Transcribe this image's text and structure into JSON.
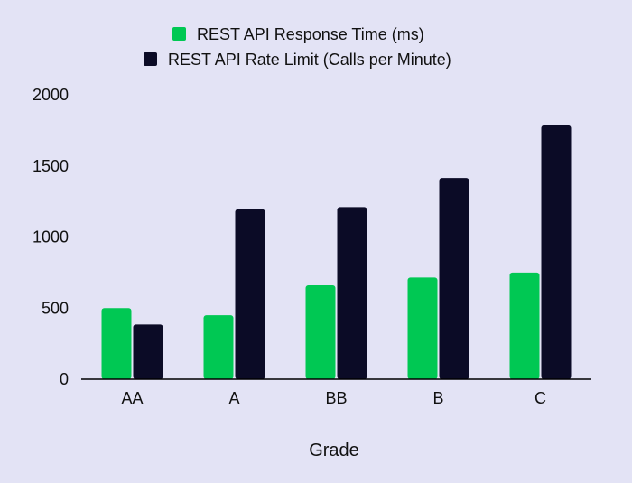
{
  "colors": {
    "background": "#e3e3f5",
    "series_1": "#00c853",
    "series_2": "#0b0b26",
    "axis": "#000000"
  },
  "chart_data": {
    "type": "bar",
    "categories": [
      "AA",
      "A",
      "BB",
      "B",
      "C"
    ],
    "series": [
      {
        "name": "REST API Response Time (ms)",
        "values": [
          500,
          450,
          660,
          715,
          750
        ]
      },
      {
        "name": "REST API Rate Limit (Calls per Minute)",
        "values": [
          385,
          1195,
          1210,
          1415,
          1785
        ]
      }
    ],
    "xlabel": "Grade",
    "ylabel": "",
    "ylim": [
      0,
      2000
    ],
    "yticks": [
      0,
      500,
      1000,
      1500,
      2000
    ],
    "grid": false,
    "legend": "top-center"
  }
}
